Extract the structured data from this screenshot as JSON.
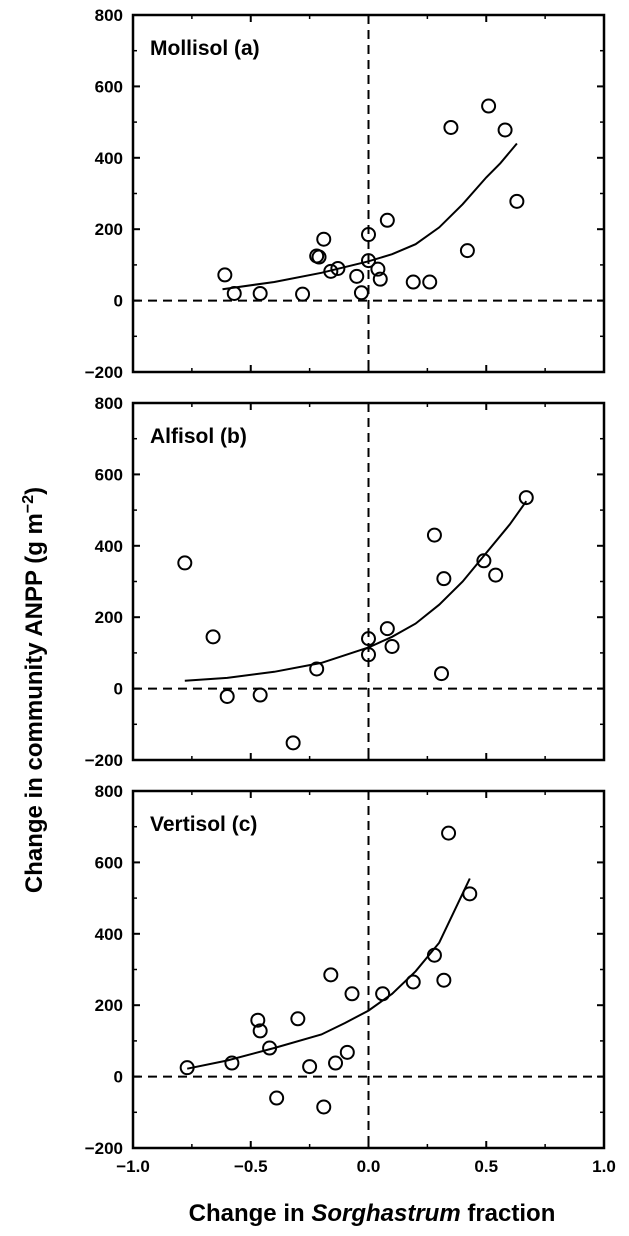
{
  "figure": {
    "ylabel_main": "Change in community ANPP (g m",
    "ylabel_sup": "−2",
    "ylabel_close": ")",
    "xlabel_pre": "Change in ",
    "xlabel_italic": "Sorghastrum",
    "xlabel_post": " fraction"
  },
  "chart_data": [
    {
      "type": "scatter",
      "title": "Mollisol (a)",
      "xlim": [
        -1.0,
        1.0
      ],
      "ylim": [
        -200,
        800
      ],
      "yticks": [
        -200,
        0,
        200,
        400,
        600,
        800
      ],
      "ytick_labels": [
        "−200",
        "0",
        "200",
        "400",
        "600",
        "800"
      ],
      "xticks": [
        -1.0,
        -0.5,
        0.0,
        0.5,
        1.0
      ],
      "xtick_labels": [],
      "reference_lines": {
        "x": 0,
        "y": 0
      },
      "points": [
        [
          -0.61,
          72
        ],
        [
          -0.57,
          20
        ],
        [
          -0.46,
          20
        ],
        [
          -0.28,
          18
        ],
        [
          -0.22,
          125
        ],
        [
          -0.21,
          122
        ],
        [
          -0.19,
          172
        ],
        [
          -0.16,
          82
        ],
        [
          -0.13,
          90
        ],
        [
          -0.05,
          68
        ],
        [
          -0.03,
          22
        ],
        [
          0.0,
          185
        ],
        [
          0.0,
          112
        ],
        [
          0.04,
          88
        ],
        [
          0.05,
          60
        ],
        [
          0.08,
          225
        ],
        [
          0.19,
          52
        ],
        [
          0.26,
          52
        ],
        [
          0.35,
          485
        ],
        [
          0.42,
          140
        ],
        [
          0.51,
          545
        ],
        [
          0.58,
          478
        ],
        [
          0.63,
          278
        ]
      ],
      "fit": [
        [
          -0.62,
          32
        ],
        [
          -0.4,
          52
        ],
        [
          -0.2,
          78
        ],
        [
          0.0,
          110
        ],
        [
          0.1,
          130
        ],
        [
          0.2,
          158
        ],
        [
          0.3,
          205
        ],
        [
          0.4,
          270
        ],
        [
          0.5,
          345
        ],
        [
          0.56,
          385
        ],
        [
          0.63,
          440
        ]
      ]
    },
    {
      "type": "scatter",
      "title": "Alfisol (b)",
      "xlim": [
        -1.0,
        1.0
      ],
      "ylim": [
        -200,
        800
      ],
      "yticks": [
        -200,
        0,
        200,
        400,
        600,
        800
      ],
      "ytick_labels": [
        "−200",
        "0",
        "200",
        "400",
        "600",
        "800"
      ],
      "xticks": [
        -1.0,
        -0.5,
        0.0,
        0.5,
        1.0
      ],
      "xtick_labels": [],
      "reference_lines": {
        "x": 0,
        "y": 0
      },
      "points": [
        [
          -0.78,
          352
        ],
        [
          -0.66,
          145
        ],
        [
          -0.6,
          -22
        ],
        [
          -0.46,
          -18
        ],
        [
          -0.32,
          -152
        ],
        [
          -0.22,
          55
        ],
        [
          0.0,
          140
        ],
        [
          0.0,
          95
        ],
        [
          0.08,
          168
        ],
        [
          0.1,
          118
        ],
        [
          0.28,
          430
        ],
        [
          0.31,
          42
        ],
        [
          0.32,
          308
        ],
        [
          0.49,
          358
        ],
        [
          0.54,
          318
        ],
        [
          0.67,
          535
        ]
      ],
      "fit": [
        [
          -0.78,
          22
        ],
        [
          -0.6,
          30
        ],
        [
          -0.4,
          47
        ],
        [
          -0.2,
          72
        ],
        [
          0.0,
          115
        ],
        [
          0.1,
          145
        ],
        [
          0.2,
          182
        ],
        [
          0.3,
          235
        ],
        [
          0.4,
          300
        ],
        [
          0.5,
          380
        ],
        [
          0.6,
          460
        ],
        [
          0.67,
          525
        ]
      ]
    },
    {
      "type": "scatter",
      "title": "Vertisol (c)",
      "xlim": [
        -1.0,
        1.0
      ],
      "ylim": [
        -200,
        800
      ],
      "yticks": [
        -200,
        0,
        200,
        400,
        600,
        800
      ],
      "ytick_labels": [
        "−200",
        "0",
        "200",
        "400",
        "600",
        "800"
      ],
      "xticks": [
        -1.0,
        -0.5,
        0.0,
        0.5,
        1.0
      ],
      "xtick_labels": [
        "−1.0",
        "−0.5",
        "0.0",
        "0.5",
        "1.0"
      ],
      "reference_lines": {
        "x": 0,
        "y": 0
      },
      "points": [
        [
          -0.77,
          25
        ],
        [
          -0.58,
          38
        ],
        [
          -0.47,
          158
        ],
        [
          -0.46,
          128
        ],
        [
          -0.42,
          80
        ],
        [
          -0.39,
          -60
        ],
        [
          -0.3,
          162
        ],
        [
          -0.25,
          28
        ],
        [
          -0.19,
          -85
        ],
        [
          -0.16,
          285
        ],
        [
          -0.14,
          38
        ],
        [
          -0.09,
          68
        ],
        [
          -0.07,
          232
        ],
        [
          0.06,
          232
        ],
        [
          0.19,
          265
        ],
        [
          0.28,
          340
        ],
        [
          0.32,
          270
        ],
        [
          0.34,
          682
        ],
        [
          0.43,
          512
        ]
      ],
      "fit": [
        [
          -0.77,
          22
        ],
        [
          -0.6,
          45
        ],
        [
          -0.4,
          80
        ],
        [
          -0.2,
          118
        ],
        [
          -0.1,
          150
        ],
        [
          0.0,
          185
        ],
        [
          0.1,
          232
        ],
        [
          0.2,
          295
        ],
        [
          0.3,
          375
        ],
        [
          0.43,
          555
        ]
      ]
    }
  ]
}
